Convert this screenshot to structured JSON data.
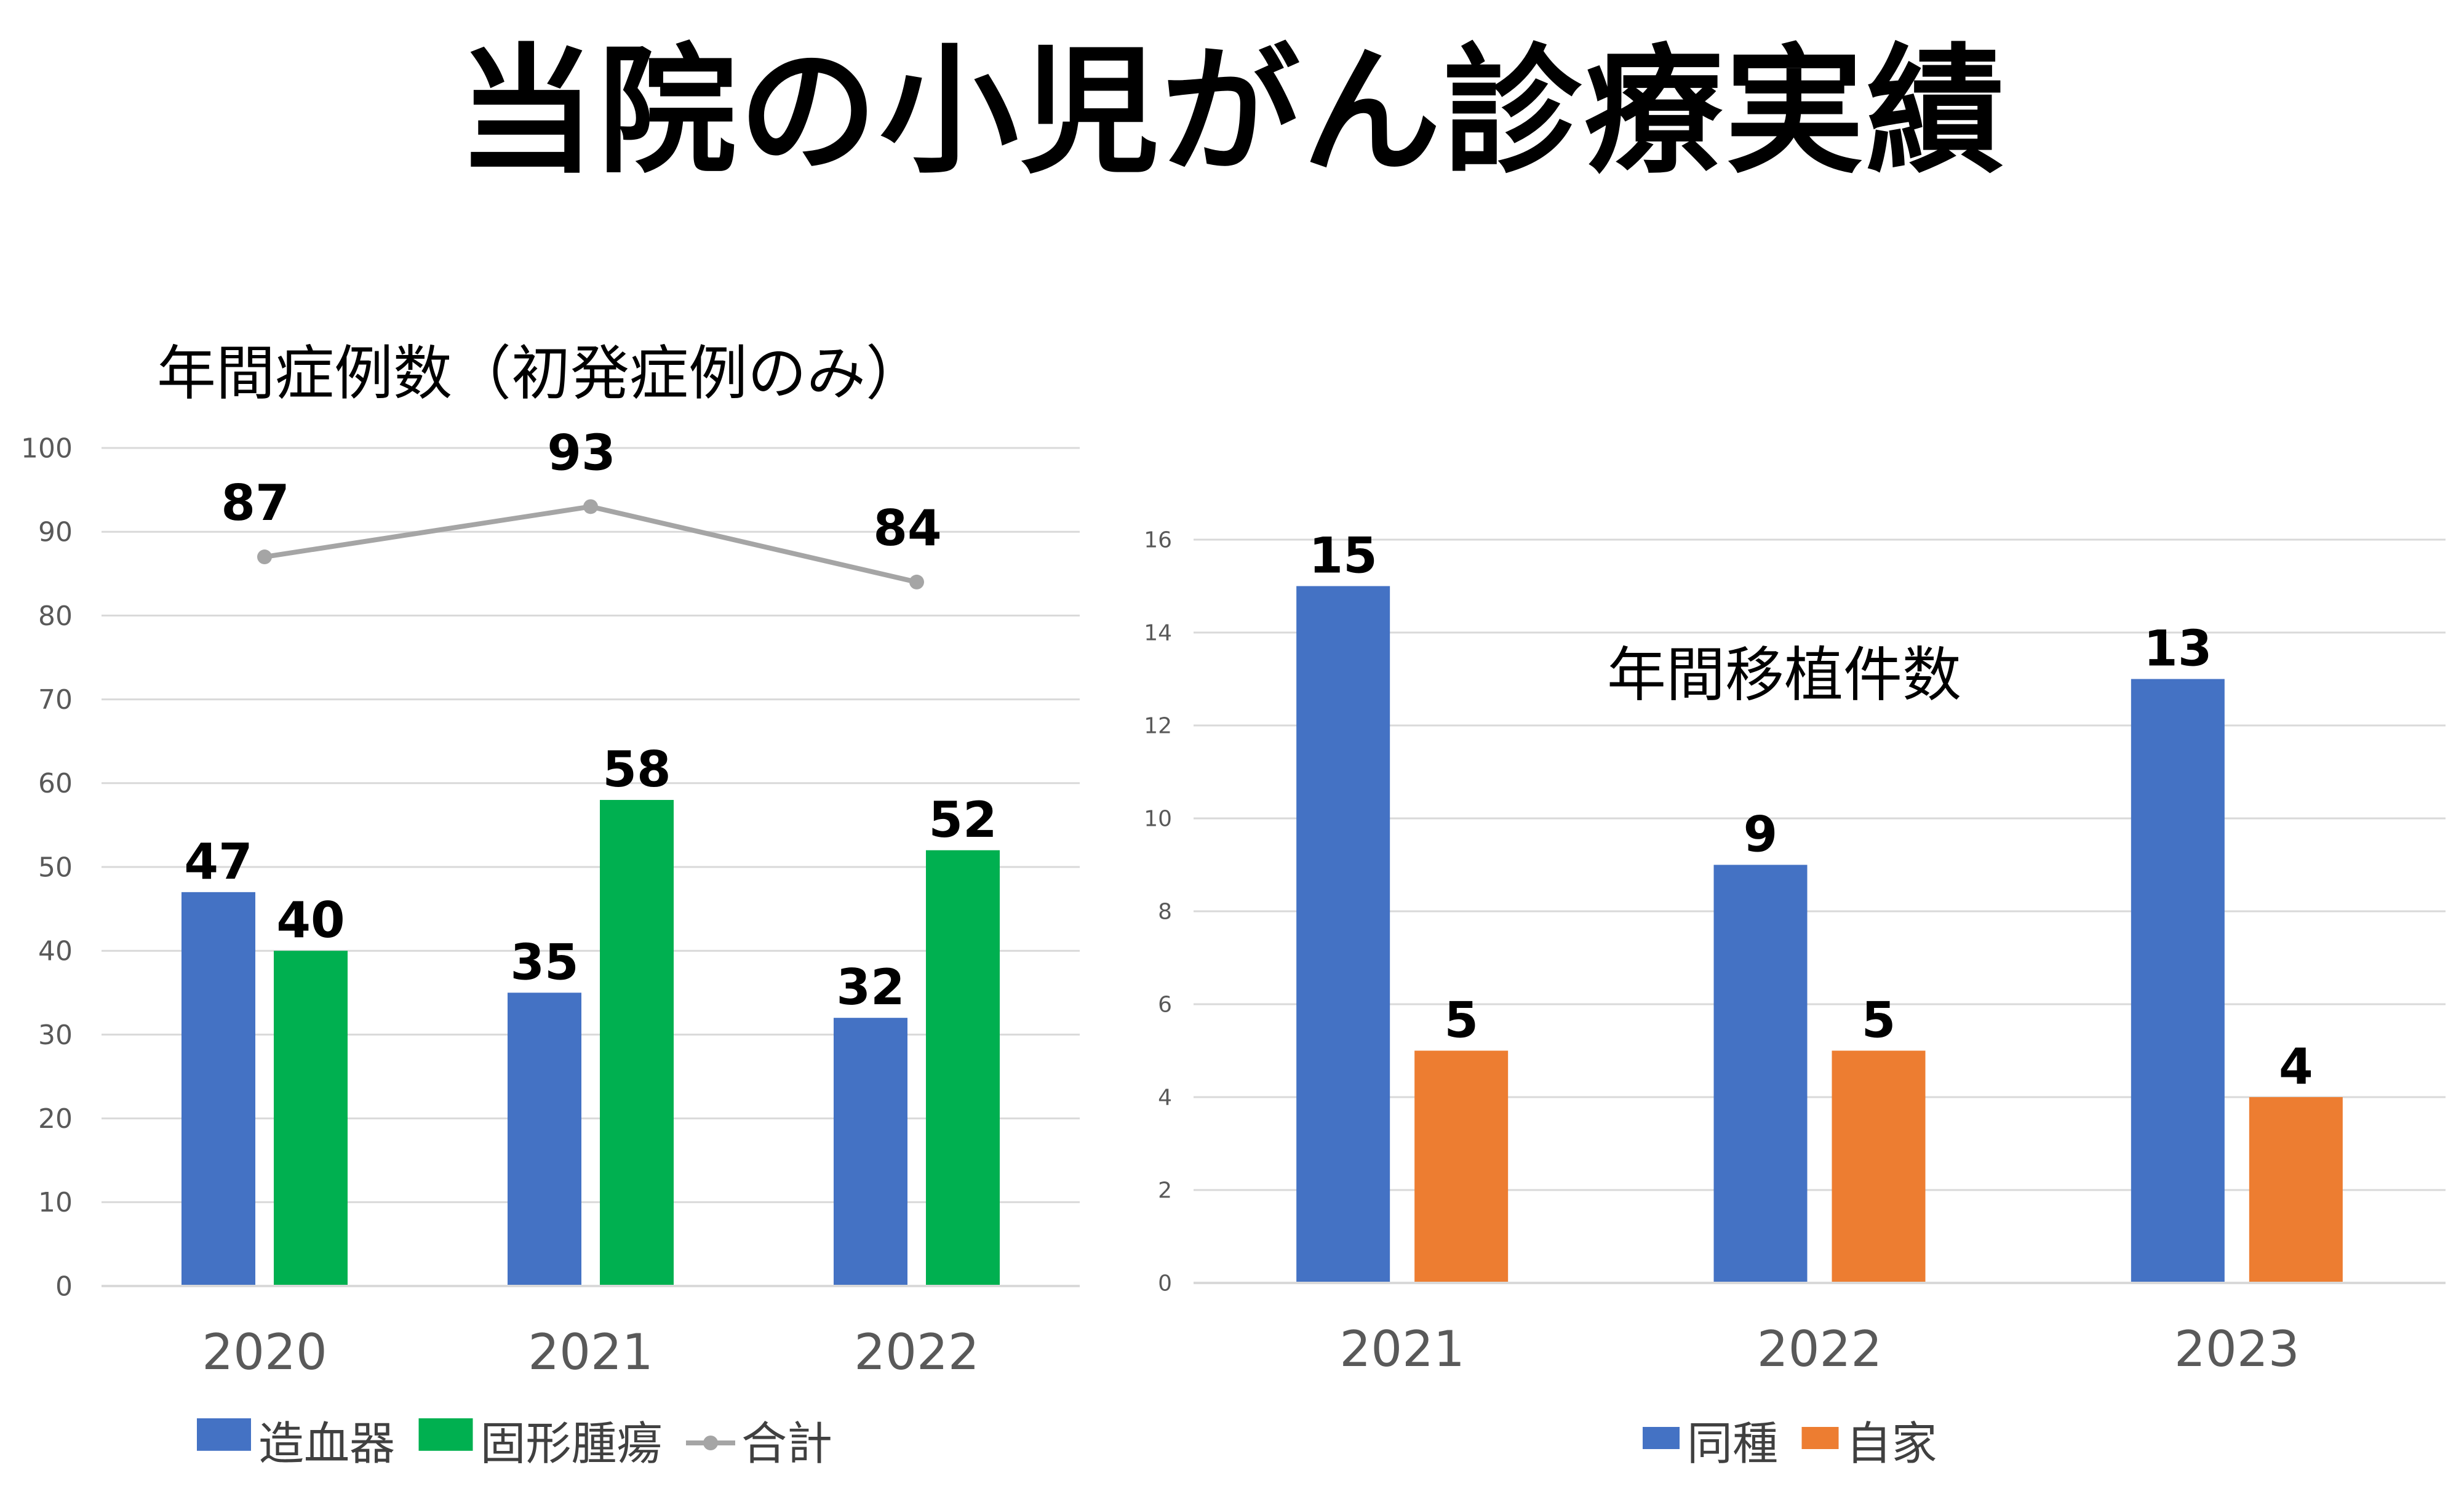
{
  "title": "当院の小児がん診療実績",
  "chart_data": [
    {
      "type": "bar",
      "title": "年間症例数（初発症例のみ）",
      "categories": [
        "2020",
        "2021",
        "2022"
      ],
      "ylim": [
        0,
        100
      ],
      "yticks": [
        0,
        10,
        20,
        30,
        40,
        50,
        60,
        70,
        80,
        90,
        100
      ],
      "series": [
        {
          "name": "造血器",
          "kind": "bar",
          "color": "#4472c4",
          "values": [
            47,
            35,
            32
          ]
        },
        {
          "name": "固形腫瘍",
          "kind": "bar",
          "color": "#00b050",
          "values": [
            40,
            58,
            52
          ]
        },
        {
          "name": "合計",
          "kind": "line",
          "color": "#a5a5a5",
          "values": [
            87,
            93,
            84
          ]
        }
      ],
      "grid": true,
      "legend": "bottom"
    },
    {
      "type": "bar",
      "title": "年間移植件数",
      "categories": [
        "2021",
        "2022",
        "2023"
      ],
      "ylim": [
        0,
        16
      ],
      "yticks": [
        0,
        2,
        4,
        6,
        8,
        10,
        12,
        14,
        16
      ],
      "series": [
        {
          "name": "同種",
          "kind": "bar",
          "color": "#4472c4",
          "values": [
            15,
            9,
            13
          ]
        },
        {
          "name": "自家",
          "kind": "bar",
          "color": "#ed7d31",
          "values": [
            5,
            5,
            4
          ]
        }
      ],
      "grid": true,
      "legend": "bottom"
    }
  ]
}
